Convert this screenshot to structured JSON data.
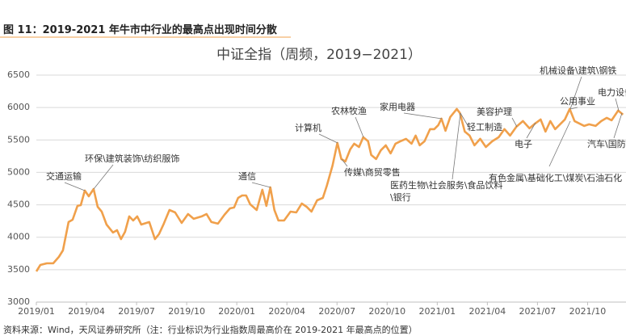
{
  "header": "图 11：2019-2021 年牛市中行业的最高点出现时间分散",
  "source": "资料来源：Wind，天风证券研究所（注：行业标识为行业指数周最高价在 2019-2021 年最高点的位置）",
  "chart_data": {
    "type": "line",
    "title": "中证全指（周频，2019−2021）",
    "color": "#f0a04b",
    "grid": true,
    "xlim": [
      0,
      35.3
    ],
    "xticks": [
      {
        "value": 0,
        "label": "2019/01"
      },
      {
        "value": 3,
        "label": "2019/04"
      },
      {
        "value": 6,
        "label": "2019/07"
      },
      {
        "value": 9,
        "label": "2019/10"
      },
      {
        "value": 12,
        "label": "2020/01"
      },
      {
        "value": 15,
        "label": "2020/04"
      },
      {
        "value": 18,
        "label": "2020/07"
      },
      {
        "value": 21,
        "label": "2020/10"
      },
      {
        "value": 24,
        "label": "2021/01"
      },
      {
        "value": 27,
        "label": "2021/04"
      },
      {
        "value": 30,
        "label": "2021/07"
      },
      {
        "value": 33,
        "label": "2021/10"
      }
    ],
    "ylim": [
      3000,
      6500
    ],
    "yticks": [
      3000,
      3500,
      4000,
      4500,
      5000,
      5500,
      6000,
      6500
    ],
    "x": [
      0,
      0.24,
      0.63,
      1.01,
      1.35,
      1.59,
      1.93,
      2.17,
      2.46,
      2.66,
      2.9,
      3.14,
      3.43,
      3.67,
      3.91,
      4.2,
      4.59,
      4.83,
      5.07,
      5.31,
      5.56,
      5.8,
      6.04,
      6.28,
      6.76,
      7.1,
      7.34,
      7.63,
      7.97,
      8.31,
      8.7,
      9.08,
      9.42,
      9.9,
      10.19,
      10.48,
      10.87,
      11.26,
      11.59,
      11.84,
      12.08,
      12.32,
      12.56,
      12.8,
      13.19,
      13.53,
      13.77,
      14.01,
      14.25,
      14.49,
      14.83,
      15.22,
      15.56,
      15.89,
      16.18,
      16.47,
      16.81,
      17.15,
      17.39,
      17.73,
      18.02,
      18.26,
      18.5,
      18.79,
      19.03,
      19.32,
      19.57,
      19.86,
      20.05,
      20.34,
      20.63,
      20.92,
      21.21,
      21.5,
      21.79,
      22.13,
      22.46,
      22.71,
      22.95,
      23.24,
      23.57,
      23.82,
      24.06,
      24.25,
      24.49,
      24.78,
      25.17,
      25.36,
      25.65,
      25.94,
      26.23,
      26.57,
      26.91,
      27.29,
      27.68,
      28.02,
      28.36,
      28.74,
      29.13,
      29.52,
      29.86,
      30.19,
      30.48,
      30.77,
      31.06,
      31.4,
      31.64,
      31.93,
      32.22,
      32.51,
      32.8,
      33.09,
      33.48,
      33.82,
      34.15,
      34.44,
      34.83,
      35.12
    ],
    "values": [
      3473,
      3573,
      3598,
      3598,
      3698,
      3797,
      4234,
      4271,
      4483,
      4495,
      4720,
      4632,
      4744,
      4470,
      4395,
      4196,
      4072,
      4109,
      3972,
      4084,
      4321,
      4258,
      4321,
      4196,
      4234,
      3972,
      4047,
      4209,
      4420,
      4383,
      4221,
      4358,
      4284,
      4321,
      4358,
      4234,
      4209,
      4346,
      4445,
      4458,
      4607,
      4644,
      4644,
      4508,
      4420,
      4732,
      4483,
      4769,
      4420,
      4258,
      4258,
      4395,
      4383,
      4520,
      4470,
      4395,
      4570,
      4607,
      4794,
      5106,
      5455,
      5206,
      5168,
      5355,
      5442,
      5392,
      5542,
      5480,
      5268,
      5206,
      5343,
      5417,
      5293,
      5442,
      5480,
      5517,
      5442,
      5567,
      5417,
      5480,
      5667,
      5667,
      5729,
      5829,
      5642,
      5853,
      5978,
      5916,
      5629,
      5567,
      5417,
      5517,
      5392,
      5480,
      5542,
      5667,
      5567,
      5704,
      5791,
      5679,
      5754,
      5816,
      5629,
      5791,
      5667,
      5754,
      5816,
      5978,
      5791,
      5754,
      5717,
      5742,
      5717,
      5791,
      5841,
      5804,
      5953,
      5891
    ],
    "annotations": [
      "交通运输",
      "环保\\建筑装饰\\纺织服饰",
      "通信",
      "计算机",
      "农林牧渔",
      "传媒\\商贸零售",
      "家用电器",
      "医药生物\\社会服务\\食品饮料\\银行",
      "轻工制造",
      "美容护理",
      "电子",
      "有色金属\\基础化工\\煤炭\\石油石化",
      "公用事业",
      "机械设备\\建筑\\钢铁",
      "电力设备",
      "汽车\\国防军"
    ]
  }
}
